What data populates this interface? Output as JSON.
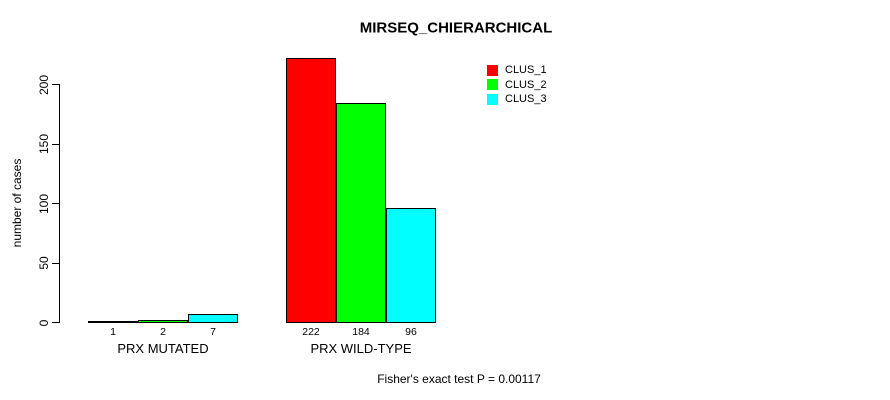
{
  "chart_data": {
    "type": "bar",
    "title": "MIRSEQ_CHIERARCHICAL",
    "xlabel": "",
    "ylabel": "number of cases",
    "ylim": [
      0,
      235
    ],
    "yticks": [
      0,
      50,
      100,
      150,
      200
    ],
    "grid": false,
    "legend_position": "top-right",
    "categories": [
      "PRX MUTATED",
      "PRX WILD-TYPE"
    ],
    "series": [
      {
        "name": "CLUS_1",
        "color": "#FF0000",
        "values": [
          1,
          222
        ]
      },
      {
        "name": "CLUS_2",
        "color": "#00FF00",
        "values": [
          2,
          184
        ]
      },
      {
        "name": "CLUS_3",
        "color": "#00FFFF",
        "values": [
          7,
          96
        ]
      }
    ],
    "bar_value_labels": [
      [
        "1",
        "2",
        "7"
      ],
      [
        "222",
        "184",
        "96"
      ]
    ],
    "annotation": "Fisher's exact test P = 0.00117"
  },
  "colors": {
    "axis": "#000000",
    "background": "#FFFFFF",
    "text": "#000000"
  }
}
